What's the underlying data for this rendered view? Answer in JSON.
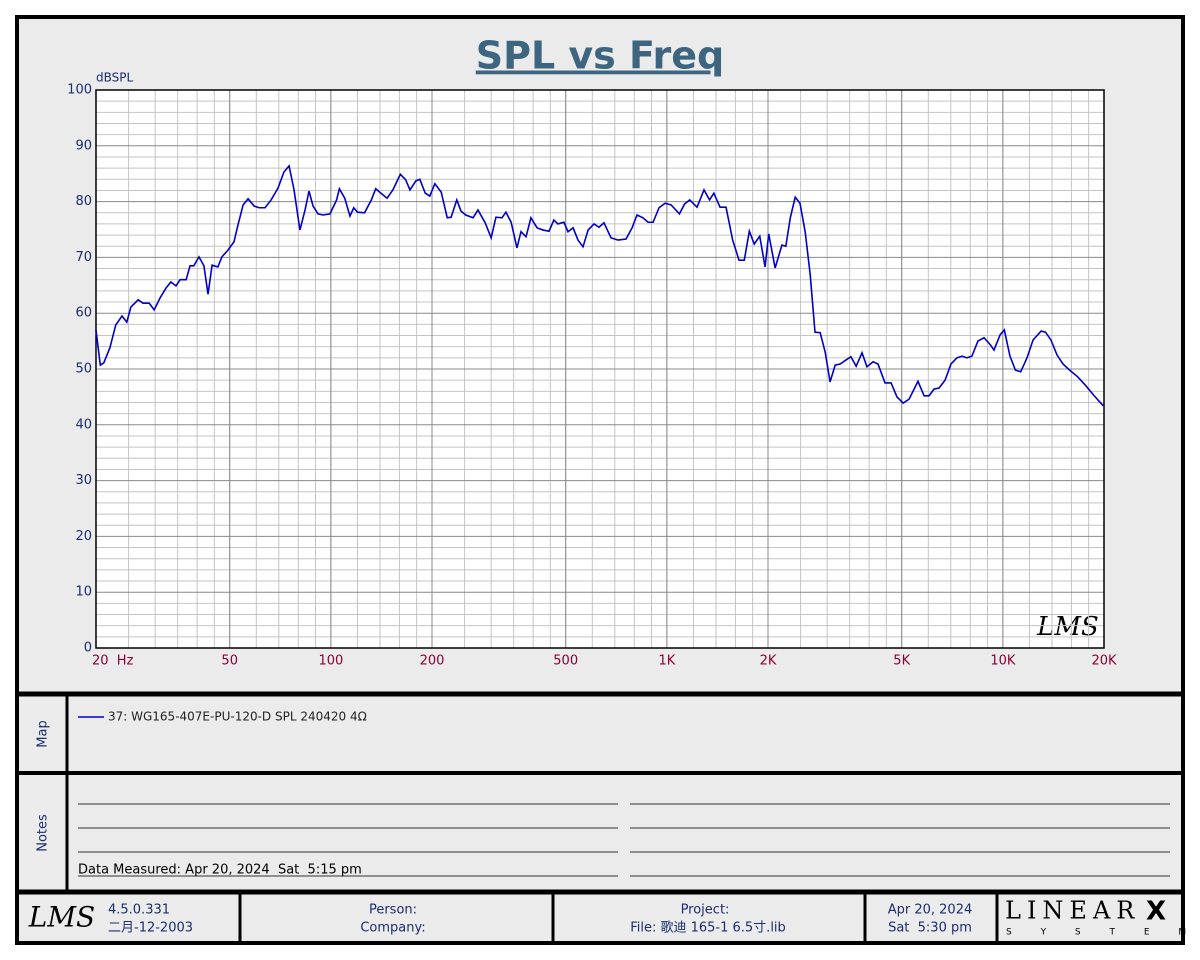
{
  "chart_data": {
    "type": "line",
    "title": "SPL vs Freq",
    "y_label": "dBSPL",
    "log_x": true,
    "grid": true,
    "minor_grid": true,
    "xlim": [
      20,
      20000
    ],
    "ylim": [
      0,
      100
    ],
    "xticks": [
      {
        "value": 20,
        "label": "20  Hz"
      },
      50,
      100,
      200,
      500,
      {
        "value": 1000,
        "label": "1K"
      },
      {
        "value": 2000,
        "label": "2K"
      },
      {
        "value": 5000,
        "label": "5K"
      },
      {
        "value": 10000,
        "label": "10K"
      },
      {
        "value": 20000,
        "label": "20K"
      }
    ],
    "yticks": [
      0,
      10,
      20,
      30,
      40,
      50,
      60,
      70,
      80,
      90,
      100
    ],
    "x": [
      20,
      20.6,
      21.1,
      22,
      22.9,
      23.9,
      24.7,
      25.4,
      26.7,
      27.6,
      28.8,
      29.8,
      31,
      32.3,
      33.4,
      34.6,
      35.6,
      37.1,
      38.1,
      39.1,
      40.5,
      41.9,
      43.1,
      44.3,
      46.1,
      47.4,
      49.4,
      51.5,
      52.9,
      54.8,
      56.7,
      59.1,
      61.1,
      63.7,
      66.4,
      69.6,
      72.5,
      75.1,
      77.7,
      80.9,
      83.8,
      86.1,
      88.5,
      91.6,
      94.8,
      99.4,
      104,
      106,
      110,
      114,
      117,
      120,
      126,
      132,
      136,
      141,
      147,
      153,
      161,
      167,
      172,
      179,
      184,
      191,
      197,
      204,
      213,
      222,
      228,
      237,
      244,
      252,
      265,
      274,
      288,
      300,
      310,
      323,
      332,
      344,
      358,
      368,
      381,
      394,
      411,
      428,
      446,
      461,
      474,
      494,
      508,
      526,
      544,
      563,
      583,
      607,
      628,
      650,
      682,
      716,
      756,
      788,
      815,
      849,
      879,
      910,
      948,
      988,
      1030,
      1090,
      1130,
      1170,
      1230,
      1290,
      1340,
      1380,
      1440,
      1500,
      1570,
      1640,
      1700,
      1760,
      1820,
      1890,
      1960,
      2010,
      2100,
      2200,
      2260,
      2330,
      2410,
      2490,
      2580,
      2670,
      2760,
      2860,
      2960,
      3060,
      3170,
      3280,
      3410,
      3530,
      3660,
      3810,
      3940,
      4110,
      4250,
      4460,
      4650,
      4840,
      5050,
      5260,
      5590,
      5830,
      6030,
      6240,
      6460,
      6730,
      7010,
      7300,
      7560,
      7820,
      8090,
      8430,
      8790,
      9160,
      9410,
      9810,
      10100,
      10500,
      10900,
      11300,
      11800,
      12300,
      13000,
      13400,
      13900,
      14500,
      15100,
      15800,
      16700,
      17600,
      18700,
      19900
    ],
    "series": [
      {
        "name": "37: WG165-407E-PU-120-D SPL 240420 4Ω",
        "color": "#0000cc",
        "values": [
          57,
          50.7,
          51.1,
          53.8,
          57.9,
          59.5,
          58.4,
          61.1,
          62.4,
          61.8,
          61.8,
          60.6,
          62.7,
          64.5,
          65.6,
          64.9,
          66,
          66,
          68.5,
          68.5,
          70.1,
          68.5,
          63.4,
          68.6,
          68.3,
          70.1,
          71.3,
          72.8,
          75.8,
          79.4,
          80.5,
          79.2,
          78.9,
          78.9,
          80.3,
          82.4,
          85.3,
          86.4,
          82.1,
          74.9,
          78.5,
          81.9,
          79.2,
          77.8,
          77.6,
          77.8,
          80.3,
          82.3,
          80.6,
          77.4,
          78.9,
          78.1,
          78,
          80.3,
          82.3,
          81.5,
          80.6,
          82.1,
          84.9,
          83.9,
          82.1,
          83.7,
          84,
          81.5,
          81,
          83.2,
          81.7,
          77.1,
          77.2,
          80.3,
          78.3,
          77.6,
          77.1,
          78.5,
          76.2,
          73.5,
          77.2,
          77.1,
          78.1,
          76.3,
          71.7,
          74.6,
          73.7,
          77.1,
          75.3,
          74.9,
          74.7,
          76.7,
          76,
          76.3,
          74.6,
          75.3,
          73.1,
          71.9,
          74.9,
          76,
          75.4,
          76.2,
          73.5,
          73.1,
          73.3,
          75.3,
          77.6,
          77.1,
          76.3,
          76.3,
          78.9,
          79.7,
          79.4,
          77.8,
          79.6,
          80.3,
          79,
          82.1,
          80.3,
          81.5,
          79,
          79,
          73.1,
          69.5,
          69.5,
          74.7,
          72.4,
          73.8,
          68.3,
          74.2,
          68.1,
          72.2,
          72,
          77.1,
          80.8,
          79.7,
          74.6,
          67,
          56.6,
          56.5,
          53,
          47.7,
          50.7,
          50.9,
          51.6,
          52.2,
          50.5,
          52.9,
          50.4,
          51.3,
          50.9,
          47.5,
          47.5,
          45,
          43.9,
          44.6,
          47.8,
          45.2,
          45.2,
          46.4,
          46.6,
          48,
          50.9,
          52,
          52.3,
          52,
          52.3,
          55,
          55.6,
          54.4,
          53.4,
          56.1,
          57,
          52.3,
          49.8,
          49.5,
          52,
          55.2,
          56.8,
          56.6,
          55.2,
          52.5,
          50.9,
          49.8,
          48.6,
          47.1,
          45.2,
          43.4
        ]
      }
    ]
  },
  "logo": "LMS",
  "map": {
    "label": "Map"
  },
  "notes": {
    "label": "Notes",
    "measured": "Data Measured: Apr 20, 2024  Sat  5:15 pm"
  },
  "footer": {
    "version": "4.5.0.331",
    "date": "二月-12-2003",
    "person": "Person:",
    "company": "Company:",
    "project": "Project:",
    "file": "File: 歌迪 165-1 6.5寸.lib",
    "print_date": "Apr 20, 2024",
    "print_time": "Sat  5:30 pm",
    "brand": "LINEAR",
    "brand_mark": "X",
    "brand_sub": "S Y S T E M S"
  }
}
